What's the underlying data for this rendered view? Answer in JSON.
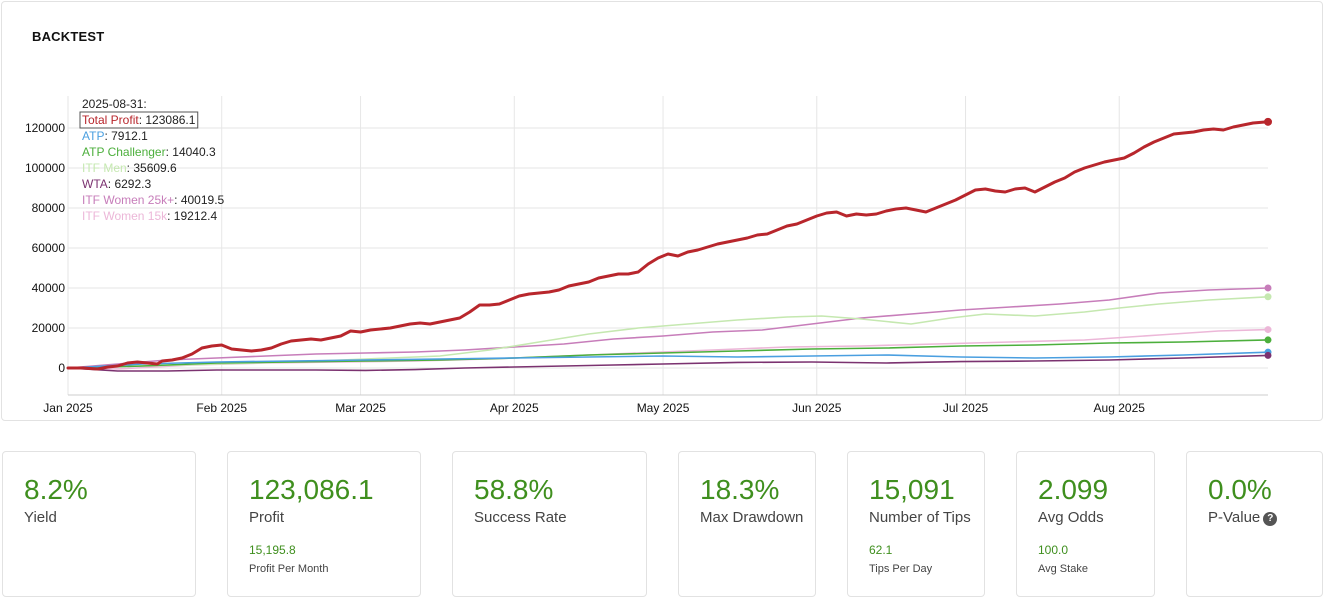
{
  "title": "BACKTEST",
  "tooltip_date": "2025-08-31:",
  "chart_data": {
    "type": "line",
    "x_range": [
      0,
      242
    ],
    "ylim": [
      -5000,
      135000
    ],
    "yticks": [
      0,
      20000,
      40000,
      60000,
      80000,
      100000,
      120000
    ],
    "xticks": [
      {
        "day": 0,
        "label": "Jan 2025"
      },
      {
        "day": 31,
        "label": "Feb 2025"
      },
      {
        "day": 59,
        "label": "Mar 2025"
      },
      {
        "day": 90,
        "label": "Apr 2025"
      },
      {
        "day": 120,
        "label": "May 2025"
      },
      {
        "day": 151,
        "label": "Jun 2025"
      },
      {
        "day": 181,
        "label": "Jul 2025"
      },
      {
        "day": 212,
        "label": "Aug 2025"
      }
    ],
    "series": [
      {
        "name": "ITF Women 15k",
        "color": "#ecb7d8",
        "width": 1.6,
        "last": "19212.4",
        "points": [
          [
            0,
            0
          ],
          [
            10,
            -500
          ],
          [
            25,
            1500
          ],
          [
            40,
            2500
          ],
          [
            55,
            3000
          ],
          [
            70,
            3500
          ],
          [
            85,
            4500
          ],
          [
            100,
            6000
          ],
          [
            115,
            7500
          ],
          [
            130,
            9000
          ],
          [
            145,
            10500
          ],
          [
            160,
            11000
          ],
          [
            175,
            12000
          ],
          [
            190,
            13000
          ],
          [
            205,
            14000
          ],
          [
            220,
            16500
          ],
          [
            232,
            18500
          ],
          [
            242,
            19212.4
          ]
        ]
      },
      {
        "name": "ITF Women 25k+",
        "color": "#c77dba",
        "width": 1.6,
        "last": "40019.5",
        "points": [
          [
            0,
            0
          ],
          [
            10,
            2000
          ],
          [
            20,
            4000
          ],
          [
            30,
            5000
          ],
          [
            40,
            6000
          ],
          [
            50,
            7000
          ],
          [
            60,
            7500
          ],
          [
            70,
            8000
          ],
          [
            80,
            9000
          ],
          [
            90,
            10500
          ],
          [
            100,
            12000
          ],
          [
            110,
            14500
          ],
          [
            120,
            16000
          ],
          [
            130,
            18000
          ],
          [
            140,
            19000
          ],
          [
            150,
            22000
          ],
          [
            160,
            25000
          ],
          [
            170,
            27000
          ],
          [
            180,
            29000
          ],
          [
            190,
            30500
          ],
          [
            200,
            32000
          ],
          [
            210,
            34000
          ],
          [
            220,
            37500
          ],
          [
            230,
            39000
          ],
          [
            242,
            40019.5
          ]
        ]
      },
      {
        "name": "ITF Men",
        "color": "#c5e8b0",
        "width": 1.6,
        "last": "35609.6",
        "points": [
          [
            0,
            0
          ],
          [
            15,
            1000
          ],
          [
            30,
            2000
          ],
          [
            45,
            3000
          ],
          [
            60,
            4500
          ],
          [
            75,
            6000
          ],
          [
            85,
            9000
          ],
          [
            95,
            13000
          ],
          [
            105,
            17000
          ],
          [
            115,
            20000
          ],
          [
            125,
            22000
          ],
          [
            135,
            24000
          ],
          [
            145,
            25500
          ],
          [
            152,
            26000
          ],
          [
            160,
            24500
          ],
          [
            170,
            22000
          ],
          [
            178,
            25000
          ],
          [
            185,
            27000
          ],
          [
            195,
            26000
          ],
          [
            205,
            28000
          ],
          [
            212,
            30000
          ],
          [
            220,
            32000
          ],
          [
            230,
            34000
          ],
          [
            242,
            35609.6
          ]
        ]
      },
      {
        "name": "ATP Challenger",
        "color": "#4caf3c",
        "width": 1.6,
        "last": "14040.3",
        "points": [
          [
            0,
            0
          ],
          [
            15,
            1000
          ],
          [
            30,
            2500
          ],
          [
            45,
            3000
          ],
          [
            60,
            3500
          ],
          [
            75,
            4000
          ],
          [
            90,
            5000
          ],
          [
            105,
            6500
          ],
          [
            120,
            7500
          ],
          [
            135,
            8500
          ],
          [
            150,
            9500
          ],
          [
            165,
            10000
          ],
          [
            180,
            11000
          ],
          [
            195,
            11500
          ],
          [
            210,
            12500
          ],
          [
            225,
            13000
          ],
          [
            242,
            14040.3
          ]
        ]
      },
      {
        "name": "ATP",
        "color": "#4a9fe0",
        "width": 1.6,
        "last": "7912.1",
        "points": [
          [
            0,
            0
          ],
          [
            15,
            2000
          ],
          [
            30,
            3000
          ],
          [
            45,
            3500
          ],
          [
            60,
            4000
          ],
          [
            75,
            4500
          ],
          [
            90,
            5000
          ],
          [
            105,
            5500
          ],
          [
            120,
            6000
          ],
          [
            135,
            5500
          ],
          [
            150,
            6000
          ],
          [
            165,
            6500
          ],
          [
            180,
            5500
          ],
          [
            195,
            5000
          ],
          [
            210,
            5500
          ],
          [
            225,
            6500
          ],
          [
            242,
            7912.1
          ]
        ]
      },
      {
        "name": "WTA",
        "color": "#7b3270",
        "width": 1.6,
        "last": "6292.3",
        "points": [
          [
            0,
            0
          ],
          [
            10,
            -1500
          ],
          [
            20,
            -1500
          ],
          [
            30,
            -1000
          ],
          [
            40,
            -1000
          ],
          [
            50,
            -1000
          ],
          [
            60,
            -1200
          ],
          [
            70,
            -800
          ],
          [
            80,
            0
          ],
          [
            90,
            500
          ],
          [
            100,
            1000
          ],
          [
            110,
            1500
          ],
          [
            120,
            2000
          ],
          [
            135,
            2800
          ],
          [
            150,
            3000
          ],
          [
            165,
            2500
          ],
          [
            180,
            3200
          ],
          [
            195,
            3500
          ],
          [
            210,
            4000
          ],
          [
            225,
            5000
          ],
          [
            242,
            6292.3
          ]
        ]
      },
      {
        "name": "Total Profit",
        "color": "#b8262c",
        "width": 3,
        "last": "123086.1",
        "points": [
          [
            0,
            0
          ],
          [
            3,
            0
          ],
          [
            6,
            -500
          ],
          [
            8,
            500
          ],
          [
            10,
            1000
          ],
          [
            12,
            2500
          ],
          [
            14,
            3000
          ],
          [
            16,
            2500
          ],
          [
            18,
            2000
          ],
          [
            19,
            3500
          ],
          [
            21,
            4000
          ],
          [
            23,
            5000
          ],
          [
            25,
            7000
          ],
          [
            27,
            10000
          ],
          [
            29,
            11000
          ],
          [
            31,
            11500
          ],
          [
            33,
            9500
          ],
          [
            35,
            9000
          ],
          [
            37,
            8500
          ],
          [
            39,
            9000
          ],
          [
            41,
            10000
          ],
          [
            43,
            12000
          ],
          [
            45,
            13500
          ],
          [
            47,
            14000
          ],
          [
            49,
            14500
          ],
          [
            51,
            14000
          ],
          [
            53,
            15000
          ],
          [
            55,
            16000
          ],
          [
            57,
            18500
          ],
          [
            59,
            18000
          ],
          [
            61,
            19000
          ],
          [
            63,
            19500
          ],
          [
            65,
            20000
          ],
          [
            67,
            21000
          ],
          [
            69,
            22000
          ],
          [
            71,
            22500
          ],
          [
            73,
            22000
          ],
          [
            75,
            23000
          ],
          [
            77,
            24000
          ],
          [
            79,
            25000
          ],
          [
            81,
            28000
          ],
          [
            83,
            31500
          ],
          [
            85,
            31500
          ],
          [
            87,
            32000
          ],
          [
            89,
            34000
          ],
          [
            91,
            36000
          ],
          [
            93,
            37000
          ],
          [
            95,
            37500
          ],
          [
            97,
            38000
          ],
          [
            99,
            39000
          ],
          [
            101,
            41000
          ],
          [
            103,
            42000
          ],
          [
            105,
            43000
          ],
          [
            107,
            45000
          ],
          [
            109,
            46000
          ],
          [
            111,
            47000
          ],
          [
            113,
            47000
          ],
          [
            115,
            48000
          ],
          [
            117,
            52000
          ],
          [
            119,
            55000
          ],
          [
            121,
            57000
          ],
          [
            123,
            56000
          ],
          [
            125,
            58000
          ],
          [
            127,
            59000
          ],
          [
            129,
            60500
          ],
          [
            131,
            62000
          ],
          [
            133,
            63000
          ],
          [
            135,
            64000
          ],
          [
            137,
            65000
          ],
          [
            139,
            66500
          ],
          [
            141,
            67000
          ],
          [
            143,
            69000
          ],
          [
            145,
            71000
          ],
          [
            147,
            72000
          ],
          [
            149,
            74000
          ],
          [
            151,
            76000
          ],
          [
            153,
            77500
          ],
          [
            155,
            78000
          ],
          [
            157,
            76000
          ],
          [
            159,
            77000
          ],
          [
            161,
            76500
          ],
          [
            163,
            77000
          ],
          [
            165,
            78500
          ],
          [
            167,
            79500
          ],
          [
            169,
            80000
          ],
          [
            171,
            79000
          ],
          [
            173,
            78000
          ],
          [
            175,
            80000
          ],
          [
            177,
            82000
          ],
          [
            179,
            84000
          ],
          [
            181,
            86500
          ],
          [
            183,
            89000
          ],
          [
            185,
            89500
          ],
          [
            187,
            88500
          ],
          [
            189,
            88000
          ],
          [
            191,
            89500
          ],
          [
            193,
            90000
          ],
          [
            195,
            88000
          ],
          [
            197,
            90500
          ],
          [
            199,
            93000
          ],
          [
            201,
            95000
          ],
          [
            203,
            98000
          ],
          [
            205,
            100000
          ],
          [
            207,
            101500
          ],
          [
            209,
            103000
          ],
          [
            211,
            104000
          ],
          [
            213,
            105000
          ],
          [
            215,
            107500
          ],
          [
            217,
            110500
          ],
          [
            219,
            113000
          ],
          [
            221,
            115000
          ],
          [
            223,
            117000
          ],
          [
            225,
            117500
          ],
          [
            227,
            118000
          ],
          [
            229,
            119000
          ],
          [
            231,
            119500
          ],
          [
            233,
            119000
          ],
          [
            235,
            120500
          ],
          [
            237,
            121500
          ],
          [
            239,
            122500
          ],
          [
            242,
            123086.1
          ]
        ]
      }
    ]
  },
  "legend_order": [
    "Total Profit",
    "ATP",
    "ATP Challenger",
    "ITF Men",
    "WTA",
    "ITF Women 25k+",
    "ITF Women 15k"
  ],
  "stats": [
    {
      "value": "8.2%",
      "label": "Yield"
    },
    {
      "value": "123,086.1",
      "label": "Profit",
      "sub_value": "15,195.8",
      "sub_label": "Profit Per Month"
    },
    {
      "value": "58.8%",
      "label": "Success Rate"
    },
    {
      "value": "18.3%",
      "label": "Max Drawdown"
    },
    {
      "value": "15,091",
      "label": "Number of Tips",
      "sub_value": "62.1",
      "sub_label": "Tips Per Day"
    },
    {
      "value": "2.099",
      "label": "Avg Odds",
      "sub_value": "100.0",
      "sub_label": "Avg Stake"
    },
    {
      "value": "0.0%",
      "label": "P-Value",
      "help": "?"
    }
  ]
}
